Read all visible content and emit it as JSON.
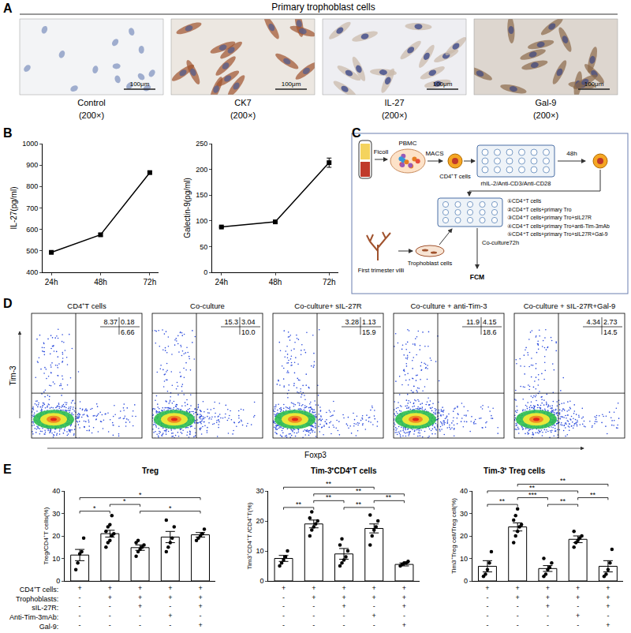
{
  "panel_labels": [
    "A",
    "B",
    "C",
    "D",
    "E"
  ],
  "panel_A": {
    "title": "Primary trophoblast cells",
    "images": [
      {
        "label": "Control",
        "magnification": "(200×)",
        "scale_bar": "100μm"
      },
      {
        "label": "CK7",
        "magnification": "(200×)",
        "scale_bar": "100μm"
      },
      {
        "label": "IL-27",
        "magnification": "(200×)",
        "scale_bar": "100μm"
      },
      {
        "label": "Gal-9",
        "magnification": "(200×)",
        "scale_bar": "100μm"
      }
    ]
  },
  "chart_data": [
    {
      "type": "line",
      "categories": [
        "24h",
        "48h",
        "72h"
      ],
      "values": [
        493,
        575,
        865
      ],
      "errors": [
        4,
        6,
        5
      ],
      "y_label": "IL-27(pg/ml)",
      "ylim": [
        400,
        1000
      ],
      "yticks": [
        400,
        500,
        600,
        700,
        800,
        900,
        1000
      ],
      "color": "#000000",
      "marker": "square",
      "grid": false
    },
    {
      "type": "line",
      "categories": [
        "24h",
        "48h",
        "72h"
      ],
      "values": [
        88,
        98,
        213
      ],
      "errors": [
        1,
        2,
        9
      ],
      "y_label": "Galectin-9(pg/ml)",
      "ylim": [
        0,
        250
      ],
      "yticks": [
        0,
        50,
        100,
        150,
        200,
        250
      ],
      "color": "#000000",
      "marker": "square",
      "grid": false
    },
    {
      "type": "bar",
      "title": "Treg",
      "y_label": "Treg/CD4⁺T cells(%)",
      "values": [
        11.5,
        21,
        14.8,
        19.5,
        20.5
      ],
      "errors": [
        2.5,
        1.5,
        1.2,
        2.5,
        1
      ],
      "points": [
        [
          5,
          8,
          12,
          13,
          19
        ],
        [
          15,
          17,
          18,
          20,
          21,
          22,
          24,
          25,
          29
        ],
        [
          11,
          13,
          14,
          15,
          16,
          17,
          18
        ],
        [
          13,
          15,
          17,
          19,
          24,
          27
        ],
        [
          18,
          19,
          20,
          21,
          23
        ]
      ],
      "comparisons": [
        {
          "groups": [
            0,
            1
          ],
          "label": "*"
        },
        {
          "groups": [
            1,
            2
          ],
          "label": "*"
        },
        {
          "groups": [
            2,
            4
          ],
          "label": "*"
        },
        {
          "groups": [
            0,
            4
          ],
          "label": "*"
        }
      ],
      "ylim": [
        0,
        40
      ],
      "yticks": [
        0,
        10,
        20,
        30,
        40
      ],
      "color": "#ffffff",
      "marker": "circle",
      "grid": false
    },
    {
      "type": "bar",
      "title": "Tim-3⁺CD4⁺T cells",
      "y_label": "Tim3⁺CD4⁺T /CD4⁺T(%)",
      "values": [
        7.5,
        19,
        9,
        17.5,
        5.5
      ],
      "errors": [
        1,
        1.3,
        1.8,
        1.5,
        0.5
      ],
      "points": [
        [
          5,
          6,
          7,
          8,
          10
        ],
        [
          15,
          17,
          18,
          19,
          20,
          21,
          23
        ],
        [
          5,
          6,
          7,
          8,
          10,
          12,
          14
        ],
        [
          12,
          15,
          17,
          18,
          20,
          22
        ],
        [
          5,
          5.5,
          6,
          6,
          6.5
        ]
      ],
      "comparisons": [
        {
          "groups": [
            0,
            1
          ],
          "label": "**"
        },
        {
          "groups": [
            1,
            2
          ],
          "label": "**"
        },
        {
          "groups": [
            2,
            3
          ],
          "label": "**"
        },
        {
          "groups": [
            3,
            4
          ],
          "label": "**"
        },
        {
          "groups": [
            1,
            4
          ],
          "label": "**"
        },
        {
          "groups": [
            0,
            3
          ],
          "label": "**"
        }
      ],
      "ylim": [
        0,
        30
      ],
      "yticks": [
        0,
        10,
        20,
        30
      ],
      "color": "#ffffff",
      "marker": "circle",
      "grid": false
    },
    {
      "type": "bar",
      "title": "Tim-3⁺ Treg cells",
      "y_label": "Tim3⁺Treg cell/Treg cell(%)",
      "values": [
        6.5,
        24,
        5.5,
        18.5,
        6.5
      ],
      "errors": [
        2.5,
        1.8,
        1.3,
        1.5,
        2.5
      ],
      "points": [
        [
          2,
          3,
          5,
          8,
          13
        ],
        [
          17,
          20,
          22,
          24,
          25,
          27,
          29,
          32
        ],
        [
          2,
          3,
          5,
          6,
          8,
          10
        ],
        [
          15,
          17,
          18,
          19,
          20,
          22
        ],
        [
          2,
          3,
          5,
          8,
          14
        ]
      ],
      "comparisons": [
        {
          "groups": [
            0,
            1
          ],
          "label": "**"
        },
        {
          "groups": [
            1,
            2
          ],
          "label": "***"
        },
        {
          "groups": [
            2,
            3
          ],
          "label": "**"
        },
        {
          "groups": [
            3,
            4
          ],
          "label": "**"
        },
        {
          "groups": [
            0,
            3
          ],
          "label": "**"
        },
        {
          "groups": [
            1,
            4
          ],
          "label": "**"
        }
      ],
      "ylim": [
        0,
        40
      ],
      "yticks": [
        0,
        10,
        20,
        30,
        40
      ],
      "color": "#ffffff",
      "marker": "circle",
      "grid": false
    }
  ],
  "panel_C": {
    "ficoll": "Ficoll",
    "pbmc": "PBMC",
    "macs": "MACS",
    "cd4": "CD4⁺T cells",
    "stimulation": "rhIL-2/Anti-CD3/Anti-CD28",
    "incubation": "48h",
    "villi": "First trimester villi",
    "trophoblast": "Trophoblast cells",
    "coculture": "Co-culture72h",
    "analysis": "FCM",
    "groups": [
      "①CD4⁺T cells",
      "②CD4⁺T cells+primary Tro",
      "③CD4⁺T cells+primary Tro+sIL27R",
      "④CD4⁺T cells+primary Tro+anti-Tim-3mAb",
      "⑤CD4⁺T cells+primary Tro+sIL27R+Gal-9"
    ]
  },
  "panel_D": {
    "y_label": "Tim-3",
    "x_label": "Foxp3",
    "plots": [
      {
        "title": "CD4⁺T cells",
        "upper_left": "8.37",
        "upper_right": "0.18",
        "lower_right": "6.66"
      },
      {
        "title": "Co-culture",
        "upper_left": "15.3",
        "upper_right": "3.04",
        "lower_right": "10.0"
      },
      {
        "title": "Co-culture+ sIL-27R",
        "upper_left": "3.28",
        "upper_right": "1.13",
        "lower_right": "15.9"
      },
      {
        "title": "Co-culture + anti-Tim-3",
        "upper_left": "11.9",
        "upper_right": "4.15",
        "lower_right": "18.6"
      },
      {
        "title": "Co-culture + sIL-27R+Gal-9",
        "upper_left": "4.34",
        "upper_right": "2.73",
        "lower_right": "14.5"
      }
    ]
  },
  "panel_E_conditions": [
    {
      "label": "CD4⁺T cells:",
      "signs": [
        "+",
        "+",
        "+",
        "+",
        "+"
      ]
    },
    {
      "label": "Trophoblasts:",
      "signs": [
        "-",
        "+",
        "+",
        "+",
        "+"
      ]
    },
    {
      "label": "sIL-27R:",
      "signs": [
        "-",
        "-",
        "+",
        "-",
        "+"
      ]
    },
    {
      "label": "Anti-Tim-3mAb:",
      "signs": [
        "-",
        "-",
        "-",
        "+",
        "-"
      ]
    },
    {
      "label": "Gal-9:",
      "signs": [
        "-",
        "-",
        "-",
        "-",
        "+"
      ]
    }
  ]
}
